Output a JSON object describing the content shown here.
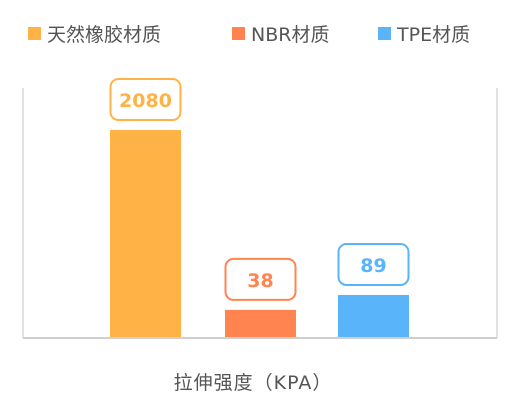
{
  "chart_data": {
    "type": "bar",
    "categories": [
      "拉伸强度（KPA）"
    ],
    "xlabel": "拉伸强度（KPA）",
    "ylabel": "",
    "series": [
      {
        "name": "天然橡胶材质",
        "value": 2080,
        "label": "2080",
        "color": "#FFB347"
      },
      {
        "name": "NBR材质",
        "value": 38,
        "label": "38",
        "color": "#FF8450"
      },
      {
        "name": "TPE材质",
        "value": 89,
        "label": "89",
        "color": "#5AB4FA"
      }
    ],
    "legend_position": "top",
    "grid": false
  }
}
